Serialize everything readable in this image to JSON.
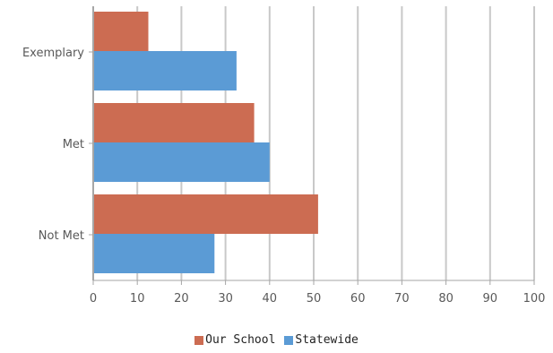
{
  "colors": {
    "our_school": "#CC6C52",
    "statewide": "#5B9BD5",
    "grid": "#C8C8C8",
    "axis": "#A6A6A6"
  },
  "chart_data": {
    "type": "bar",
    "orientation": "horizontal",
    "categories": [
      "Exemplary",
      "Met",
      "Not Met"
    ],
    "series": [
      {
        "name": "Our School",
        "values": [
          12.5,
          36.5,
          51
        ]
      },
      {
        "name": "Statewide",
        "values": [
          32.5,
          40,
          27.5
        ]
      }
    ],
    "xlim": [
      0,
      100
    ],
    "x_ticks": [
      "0",
      "10",
      "20",
      "30",
      "40",
      "50",
      "60",
      "70",
      "80",
      "90",
      "100"
    ],
    "grid": true,
    "legend_position": "bottom"
  }
}
